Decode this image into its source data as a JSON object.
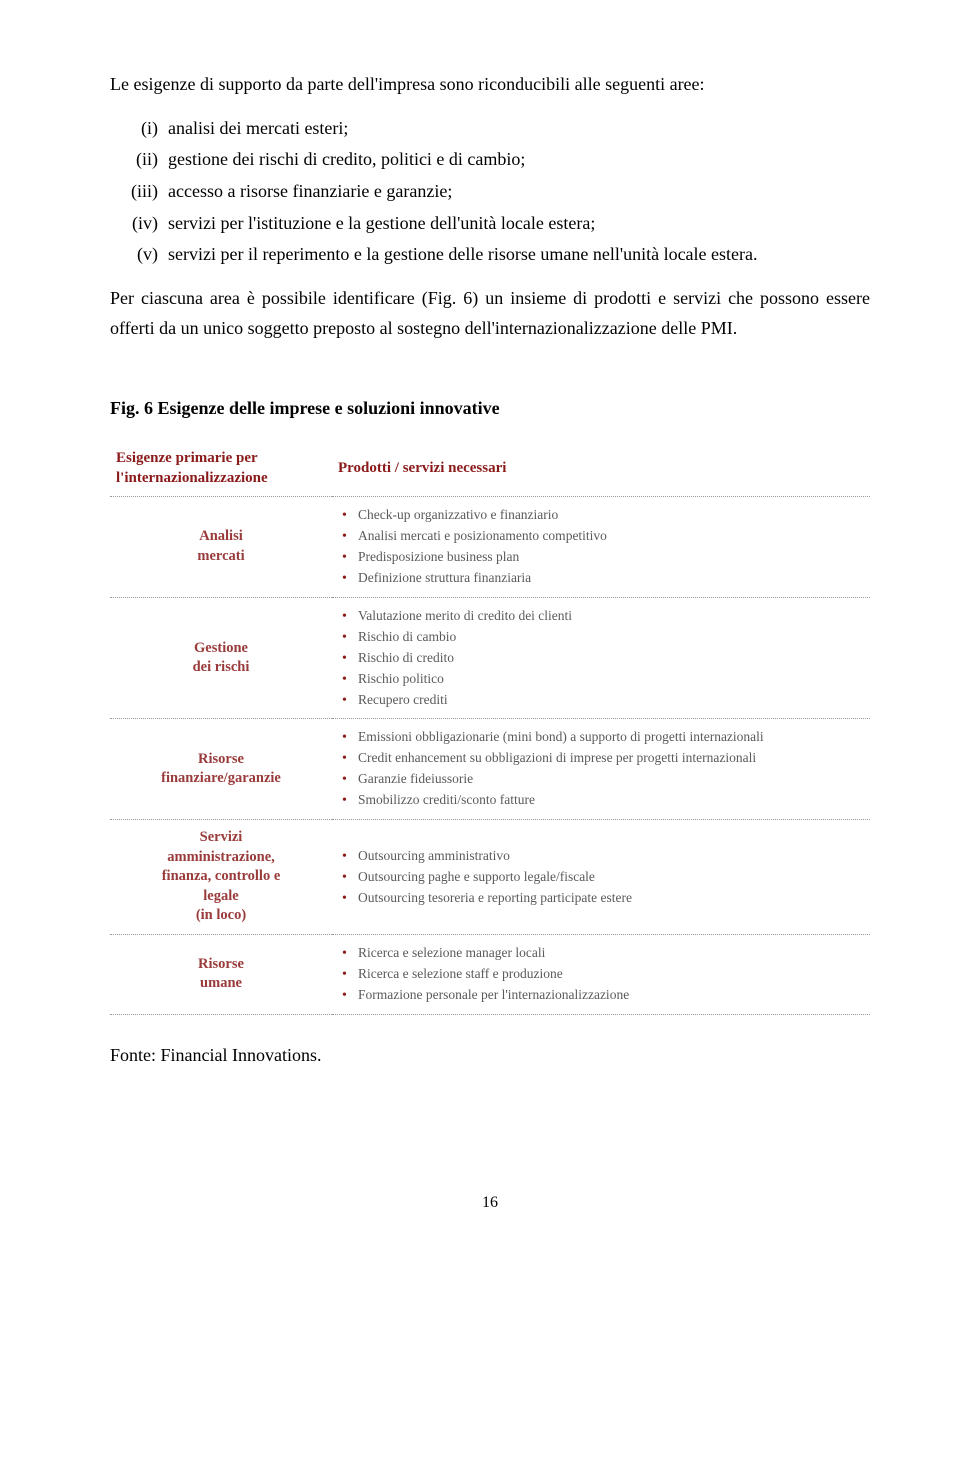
{
  "intro": "Le esigenze di supporto da parte dell'impresa sono riconducibili alle seguenti aree:",
  "roman": [
    {
      "num": "(i)",
      "text": "analisi dei mercati esteri;"
    },
    {
      "num": "(ii)",
      "text": "gestione dei rischi di credito, politici e di cambio;"
    },
    {
      "num": "(iii)",
      "text": "accesso a risorse finanziarie e garanzie;"
    },
    {
      "num": "(iv)",
      "text": "servizi per l'istituzione e la gestione dell'unità locale estera;"
    },
    {
      "num": "(v)",
      "text": "servizi per il reperimento e la gestione delle risorse umane nell'unità locale estera."
    }
  ],
  "body": "Per ciascuna area è possibile identificare (Fig. 6) un insieme di prodotti e servizi che possono essere offerti da un unico soggetto preposto al sostegno dell'internazionalizzazione delle PMI.",
  "fig_title": "Fig. 6 Esigenze delle imprese e soluzioni innovative",
  "table": {
    "header_left": "Esigenze primarie per l'internazionalizzazione",
    "header_right": "Prodotti / servizi necessari",
    "rows": [
      {
        "left": "Analisi\nmercati",
        "right": [
          "Check-up organizzativo e finanziario",
          "Analisi mercati e posizionamento competitivo",
          "Predisposizione business plan",
          "Definizione struttura finanziaria"
        ]
      },
      {
        "left": "Gestione\ndei rischi",
        "right": [
          "Valutazione merito di credito dei clienti",
          "Rischio di cambio",
          "Rischio di credito",
          "Rischio politico",
          "Recupero crediti"
        ]
      },
      {
        "left": "Risorse\nfinanziare/garanzie",
        "right": [
          "Emissioni obbligazionarie (mini bond) a supporto di progetti internazionali",
          "Credit enhancement su obbligazioni di imprese per progetti internazionali",
          "Garanzie fideiussorie",
          "Smobilizzo crediti/sconto fatture"
        ]
      },
      {
        "left": "Servizi\namministrazione,\nfinanza, controllo e\nlegale\n(in loco)",
        "right": [
          "Outsourcing amministrativo",
          "Outsourcing paghe e supporto legale/fiscale",
          "Outsourcing tesoreria e reporting participate estere"
        ]
      },
      {
        "left": "Risorse\numane",
        "right": [
          "Ricerca e selezione manager locali",
          "Ricerca e selezione staff e produzione",
          "Formazione personale per l'internazionalizzazione"
        ]
      }
    ]
  },
  "source": "Fonte: Financial Innovations.",
  "page_number": "16",
  "colors": {
    "dark_red": "#8b1a1a",
    "muted_red": "#9a3b3b",
    "grey_text": "#5a5a5a",
    "dot_border": "#999999"
  }
}
